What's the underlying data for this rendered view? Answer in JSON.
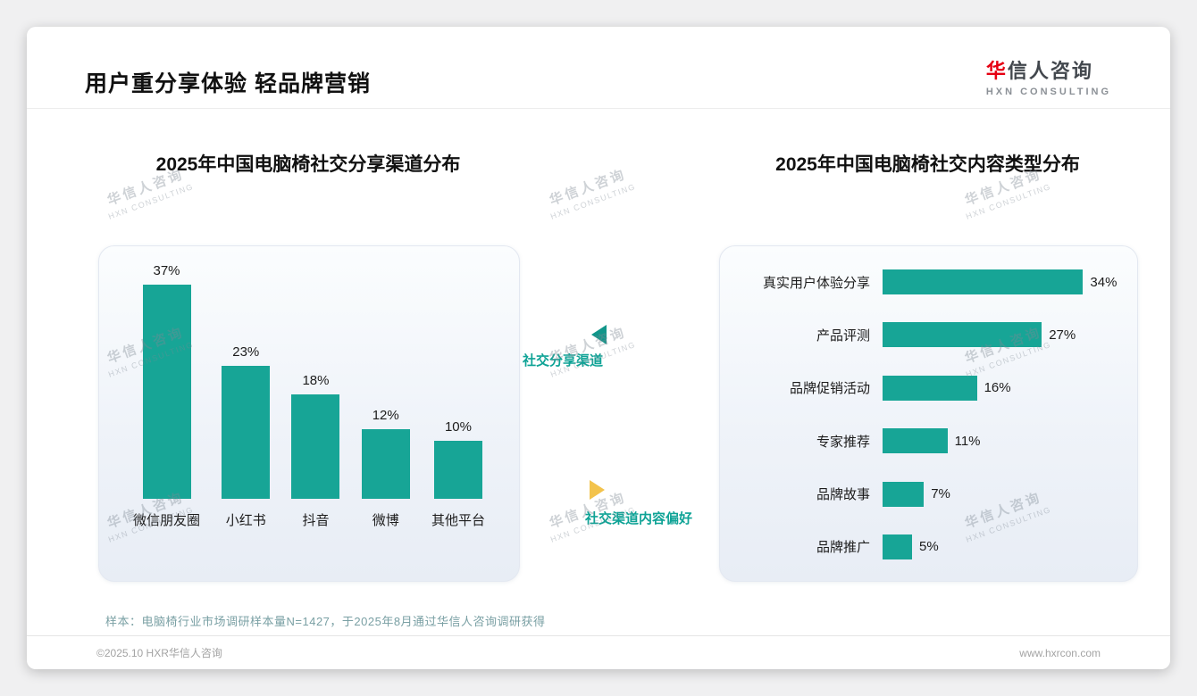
{
  "title": "用户重分享体验 轻品牌营销",
  "logo": {
    "cn_first": "华",
    "cn_rest": "信人咨询",
    "en": "HXN CONSULTING"
  },
  "middle": {
    "top_label": "社交分享渠道",
    "bottom_label": "社交渠道内容偏好"
  },
  "note": "样本：电脑椅行业市场调研样本量N=1427，于2025年8月通过华信人咨询调研获得",
  "footer": {
    "copyright": "©2025.10 HXR华信人咨询",
    "website": "www.hxrcon.com"
  },
  "watermark": {
    "cn": "华信人咨询",
    "en": "HXN CONSULTING"
  },
  "colors": {
    "bar_teal": "#17a596",
    "accent_red": "#e60012",
    "arrow_teal": "#11968a",
    "arrow_yellow": "#f3c34c",
    "label_teal": "#0fa396"
  },
  "chart_data": [
    {
      "type": "bar",
      "orientation": "vertical",
      "title": "2025年中国电脑椅社交分享渠道分布",
      "categories": [
        "微信朋友圈",
        "小红书",
        "抖音",
        "微博",
        "其他平台"
      ],
      "values": [
        37,
        23,
        18,
        12,
        10
      ],
      "unit": "%",
      "bar_color": "#17a596",
      "xlabel": "",
      "ylabel": "",
      "ylim": [
        0,
        40
      ],
      "grid": false,
      "legend": "none",
      "value_labels": "above bars"
    },
    {
      "type": "bar",
      "orientation": "horizontal",
      "title": "2025年中国电脑椅社交内容类型分布",
      "categories": [
        "真实用户体验分享",
        "产品评测",
        "品牌促销活动",
        "专家推荐",
        "品牌故事",
        "品牌推广"
      ],
      "values": [
        34,
        27,
        16,
        11,
        7,
        5
      ],
      "unit": "%",
      "bar_color": "#17a596",
      "xlabel": "",
      "ylabel": "",
      "xlim": [
        0,
        38
      ],
      "grid": false,
      "legend": "none",
      "value_labels": "right of bars"
    }
  ]
}
